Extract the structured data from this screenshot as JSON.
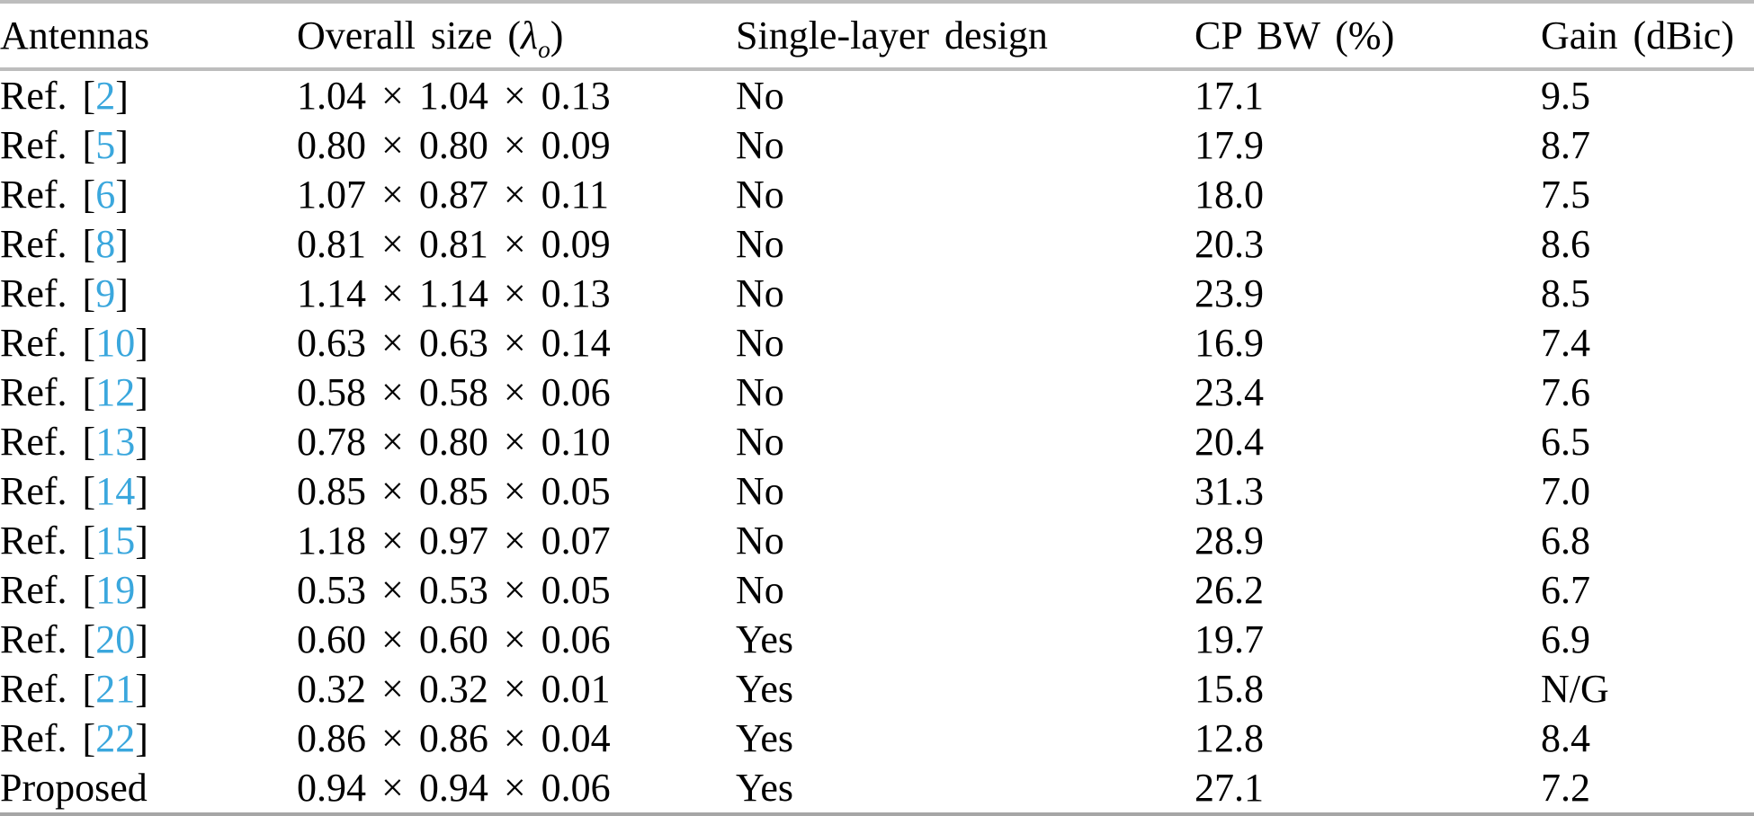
{
  "colors": {
    "text": "#000000",
    "reference_link": "#3aa7dd",
    "rule_top": "#bdbdbd",
    "rule_header": "#bdbdbd",
    "rule_bottom": "#a6a6a6"
  },
  "table": {
    "headers": [
      {
        "label": "Antennas"
      },
      {
        "label_prefix": "Overall size (",
        "lambda": "λ",
        "lambda_subscript": "o",
        "label_suffix": ")"
      },
      {
        "label": "Single-layer design"
      },
      {
        "label": "CP BW (%)"
      },
      {
        "label": "Gain (dBic)"
      }
    ],
    "rows": [
      {
        "antenna_prefix": "Ref. [",
        "antenna_ref": "2",
        "antenna_suffix": "]",
        "overall_size": "1.04 × 1.04 × 0.13",
        "single_layer": "No",
        "cp_bw": "17.1",
        "gain": "9.5",
        "emphasized": false
      },
      {
        "antenna_prefix": "Ref. [",
        "antenna_ref": "5",
        "antenna_suffix": "]",
        "overall_size": "0.80 × 0.80 × 0.09",
        "single_layer": "No",
        "cp_bw": "17.9",
        "gain": "8.7",
        "emphasized": false
      },
      {
        "antenna_prefix": "Ref. [",
        "antenna_ref": "6",
        "antenna_suffix": "]",
        "overall_size": "1.07 × 0.87 × 0.11",
        "single_layer": "No",
        "cp_bw": "18.0",
        "gain": "7.5",
        "emphasized": false
      },
      {
        "antenna_prefix": "Ref. [",
        "antenna_ref": "8",
        "antenna_suffix": "]",
        "overall_size": "0.81 × 0.81 × 0.09",
        "single_layer": "No",
        "cp_bw": "20.3",
        "gain": "8.6",
        "emphasized": false
      },
      {
        "antenna_prefix": "Ref. [",
        "antenna_ref": "9",
        "antenna_suffix": "]",
        "overall_size": "1.14 × 1.14 × 0.13",
        "single_layer": "No",
        "cp_bw": "23.9",
        "gain": "8.5",
        "emphasized": false
      },
      {
        "antenna_prefix": "Ref. [",
        "antenna_ref": "10",
        "antenna_suffix": "]",
        "overall_size": "0.63 × 0.63 × 0.14",
        "single_layer": "No",
        "cp_bw": "16.9",
        "gain": "7.4",
        "emphasized": false
      },
      {
        "antenna_prefix": "Ref. [",
        "antenna_ref": "12",
        "antenna_suffix": "]",
        "overall_size": "0.58 × 0.58 × 0.06",
        "single_layer": "No",
        "cp_bw": "23.4",
        "gain": "7.6",
        "emphasized": false
      },
      {
        "antenna_prefix": "Ref. [",
        "antenna_ref": "13",
        "antenna_suffix": "]",
        "overall_size": "0.78 × 0.80 × 0.10",
        "single_layer": "No",
        "cp_bw": "20.4",
        "gain": "6.5",
        "emphasized": false
      },
      {
        "antenna_prefix": "Ref. [",
        "antenna_ref": "14",
        "antenna_suffix": "]",
        "overall_size": "0.85 × 0.85 × 0.05",
        "single_layer": "No",
        "cp_bw": "31.3",
        "gain": "7.0",
        "emphasized": false
      },
      {
        "antenna_prefix": "Ref. [",
        "antenna_ref": "15",
        "antenna_suffix": "]",
        "overall_size": "1.18 × 0.97 × 0.07",
        "single_layer": "No",
        "cp_bw": "28.9",
        "gain": "6.8",
        "emphasized": false
      },
      {
        "antenna_prefix": "Ref. [",
        "antenna_ref": "19",
        "antenna_suffix": "]",
        "overall_size": "0.53 × 0.53 × 0.05",
        "single_layer": "No",
        "cp_bw": "26.2",
        "gain": "6.7",
        "emphasized": false
      },
      {
        "antenna_prefix": "Ref. [",
        "antenna_ref": "20",
        "antenna_suffix": "]",
        "overall_size": "0.60 × 0.60 × 0.06",
        "single_layer": "Yes",
        "cp_bw": "19.7",
        "gain": "6.9",
        "emphasized": false
      },
      {
        "antenna_prefix": "Ref. [",
        "antenna_ref": "21",
        "antenna_suffix": "]",
        "overall_size": "0.32 × 0.32 × 0.01",
        "single_layer": "Yes",
        "cp_bw": "15.8",
        "gain": "N/G",
        "emphasized": false
      },
      {
        "antenna_prefix": "Ref. [",
        "antenna_ref": "22",
        "antenna_suffix": "]",
        "overall_size": "0.86 × 0.86 × 0.04",
        "single_layer": "Yes",
        "cp_bw": "12.8",
        "gain": "8.4",
        "emphasized": false
      },
      {
        "antenna": "Proposed",
        "overall_size": "0.94 × 0.94 × 0.06",
        "single_layer": "Yes",
        "cp_bw": "27.1",
        "gain": "7.2",
        "emphasized": true
      }
    ]
  }
}
